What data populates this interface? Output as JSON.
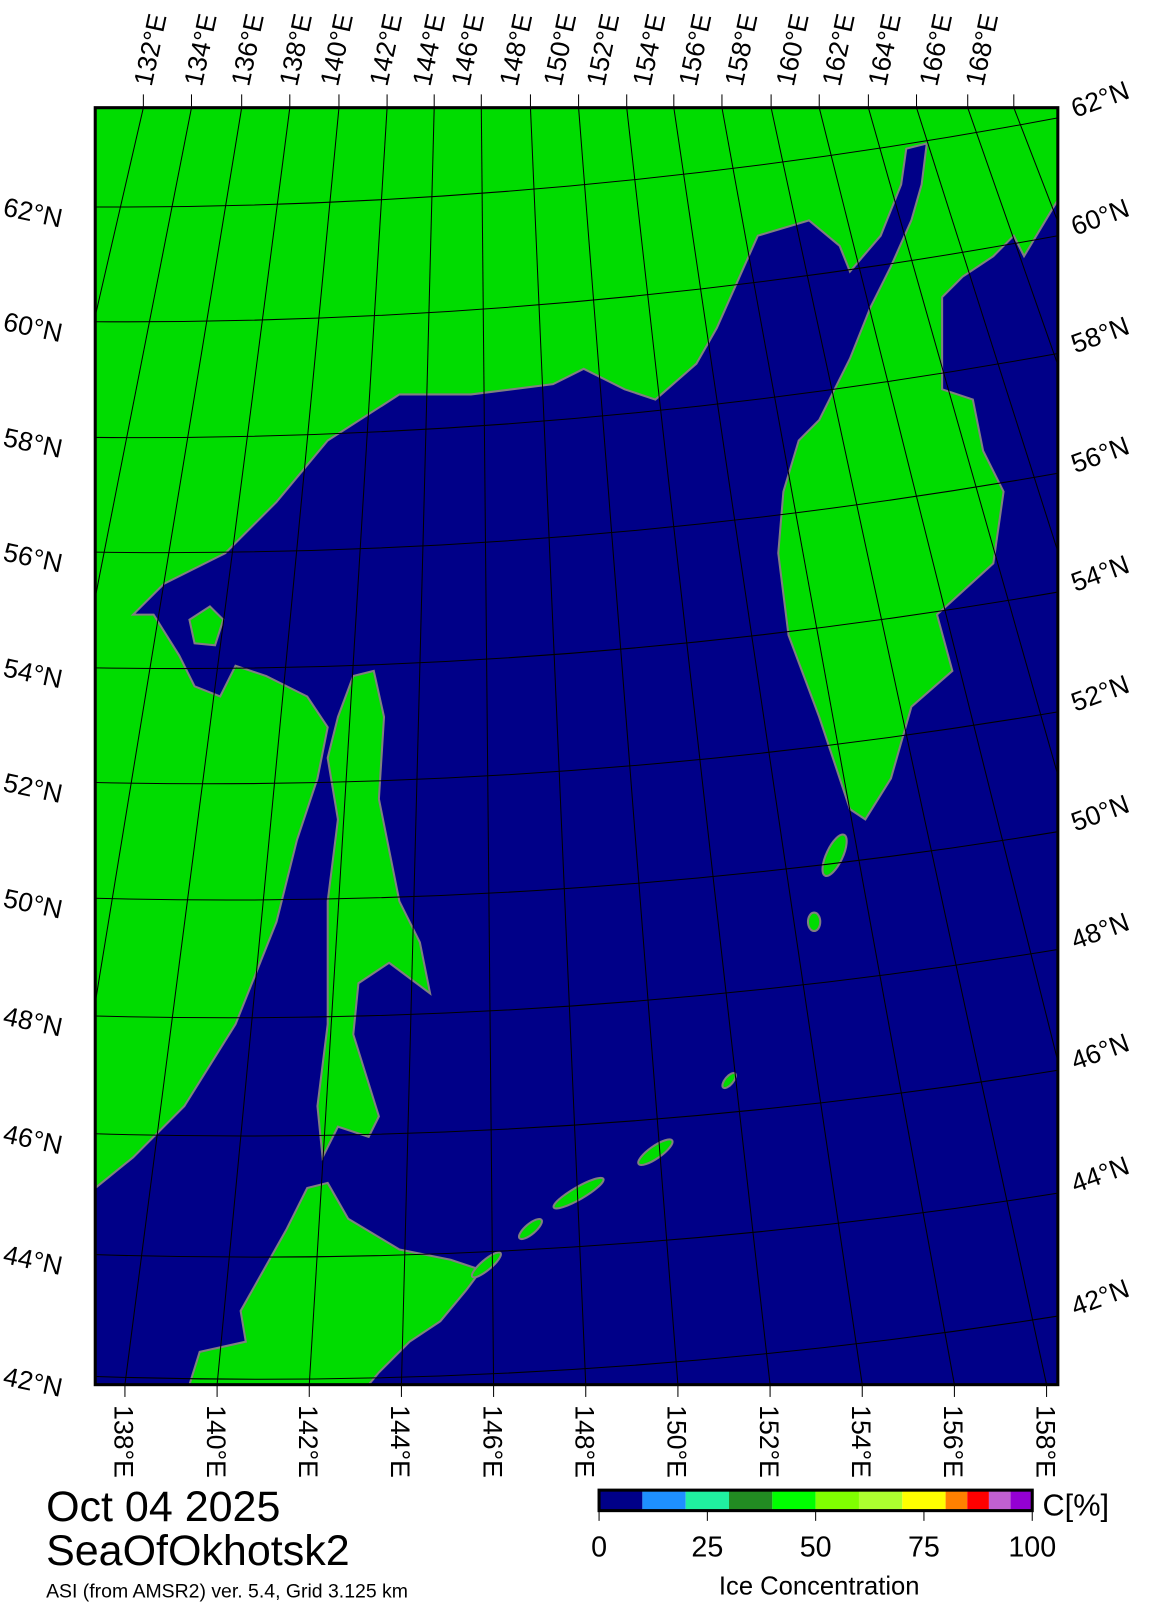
{
  "map": {
    "title_date": "Oct 04 2025",
    "region": "SeaOfOkhotsk2",
    "source": "ASI (from AMSR2) ver. 5.4,  Grid 3.125 km",
    "colors": {
      "sea": "#000088",
      "land": "#00dc00",
      "coast": "#808080",
      "grid": "#000000"
    },
    "top_lon_labels": [
      "132°E",
      "134°E",
      "136°E",
      "138°E",
      "140°E",
      "142°E",
      "144°E",
      "146°E",
      "148°E",
      "150°E",
      "152°E",
      "154°E",
      "156°E",
      "158°E",
      "160°E",
      "162°E",
      "164°E",
      "166°E",
      "168°E"
    ],
    "bottom_lon_labels": [
      "138°E",
      "140°E",
      "142°E",
      "144°E",
      "146°E",
      "148°E",
      "150°E",
      "152°E",
      "154°E",
      "156°E",
      "158°E"
    ],
    "left_lat_labels": [
      "62°N",
      "60°N",
      "58°N",
      "56°N",
      "54°N",
      "52°N",
      "50°N",
      "48°N",
      "46°N",
      "44°N",
      "42°N"
    ],
    "right_lat_labels": [
      "62°N",
      "60°N",
      "58°N",
      "56°N",
      "54°N",
      "52°N",
      "50°N",
      "48°N",
      "46°N",
      "44°N",
      "42°N"
    ]
  },
  "colorbar": {
    "title": "Ice Concentration",
    "unit": "C[%]",
    "ticks": [
      "0",
      "25",
      "50",
      "75",
      "100"
    ],
    "bounds": [
      0,
      10,
      20,
      30,
      40,
      50,
      60,
      70,
      80,
      85,
      90,
      95,
      100
    ],
    "colors": [
      "#000088",
      "#1e90ff",
      "#20f0a0",
      "#228b22",
      "#00ff00",
      "#80ff00",
      "#adff2f",
      "#ffff00",
      "#ff8000",
      "#ff0000",
      "#c060d0",
      "#9400d3"
    ]
  }
}
